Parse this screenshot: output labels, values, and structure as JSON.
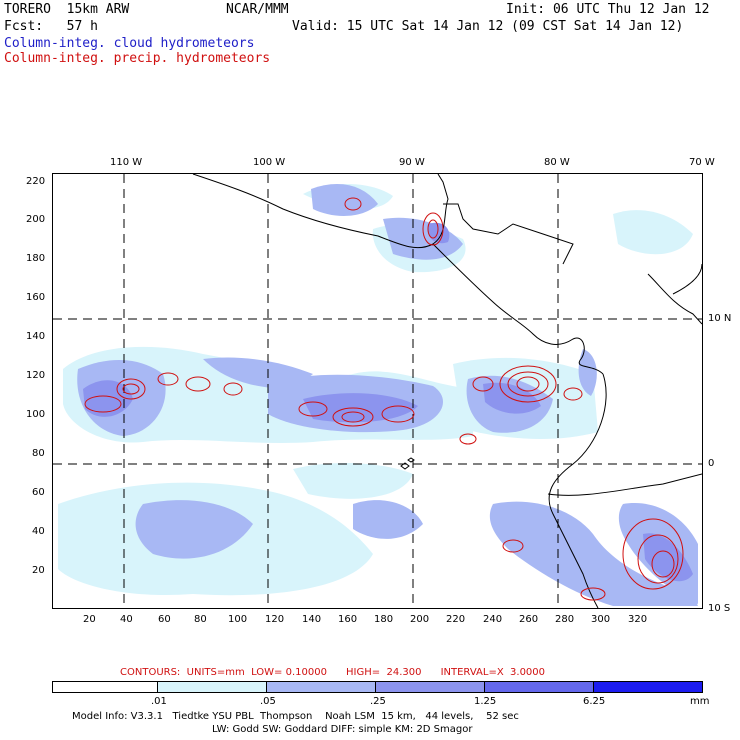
{
  "header": {
    "model": "TORERO  15km ARW",
    "center": "NCAR/MMM",
    "init": "Init: 06 UTC Thu 12 Jan 12",
    "fcst": "Fcst:   57 h",
    "valid": "Valid: 15 UTC Sat 14 Jan 12 (09 CST Sat 14 Jan 12)",
    "legend_cloud": "Column-integ. cloud hydrometeors",
    "legend_precip": "Column-integ. precip. hydrometeors"
  },
  "axes": {
    "top_lon": [
      "110 W",
      "100 W",
      "90 W",
      "80 W",
      "70 W"
    ],
    "right_lat": [
      "10 N",
      "0",
      "10 S"
    ],
    "left_grid": [
      "220",
      "200",
      "180",
      "160",
      "140",
      "120",
      "100",
      "80",
      "60",
      "40",
      "20"
    ],
    "bottom_grid": [
      "20",
      "40",
      "60",
      "80",
      "100",
      "120",
      "140",
      "160",
      "180",
      "200",
      "220",
      "240",
      "260",
      "280",
      "300",
      "320"
    ]
  },
  "contours_line": "CONTOURS:  UNITS=mm  LOW= 0.10000      HIGH=  24.300      INTERVAL=X  3.0000",
  "colorbar": {
    "labels": [
      ".01",
      ".05",
      ".25",
      "1.25",
      "6.25"
    ],
    "unit": "mm",
    "colors": [
      "#ffffff",
      "#d8f4fb",
      "#a8b8f4",
      "#8c94ee",
      "#6468ec",
      "#3c3cec",
      "#1c1cf0"
    ]
  },
  "footer": {
    "line1": "Model Info: V3.3.1   Tiedtke YSU PBL  Thompson    Noah LSM  15 km,   44 levels,    52 sec",
    "line2": "LW: Godd SW: Goddard DIFF: simple KM: 2D Smagor"
  }
}
